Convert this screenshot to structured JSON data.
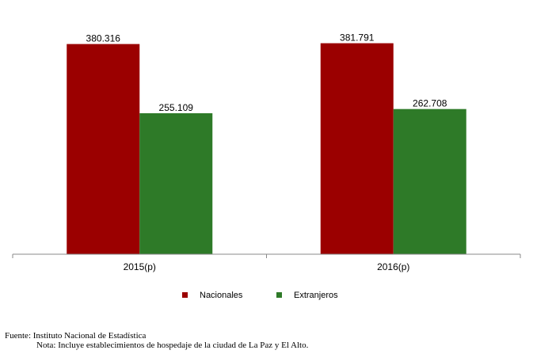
{
  "chart_data": {
    "type": "bar",
    "categories": [
      "2015(p)",
      "2016(p)"
    ],
    "series": [
      {
        "name": "Nacionales",
        "values": [
          380316,
          381791
        ],
        "labels": [
          "380.316",
          "381.791"
        ],
        "color": "#9b0000"
      },
      {
        "name": "Extranjeros",
        "values": [
          255109,
          262708
        ],
        "labels": [
          "255.109",
          "262.708"
        ],
        "color": "#2e7a28"
      }
    ],
    "ylim": [
      0,
      460000
    ],
    "grid": false,
    "legend_position": "bottom"
  },
  "footer": {
    "source": "Fuente: Instituto Nacional de Estadística",
    "note": "Nota: Incluye establecimientos de hospedaje de la ciudad de La Paz y El Alto."
  }
}
